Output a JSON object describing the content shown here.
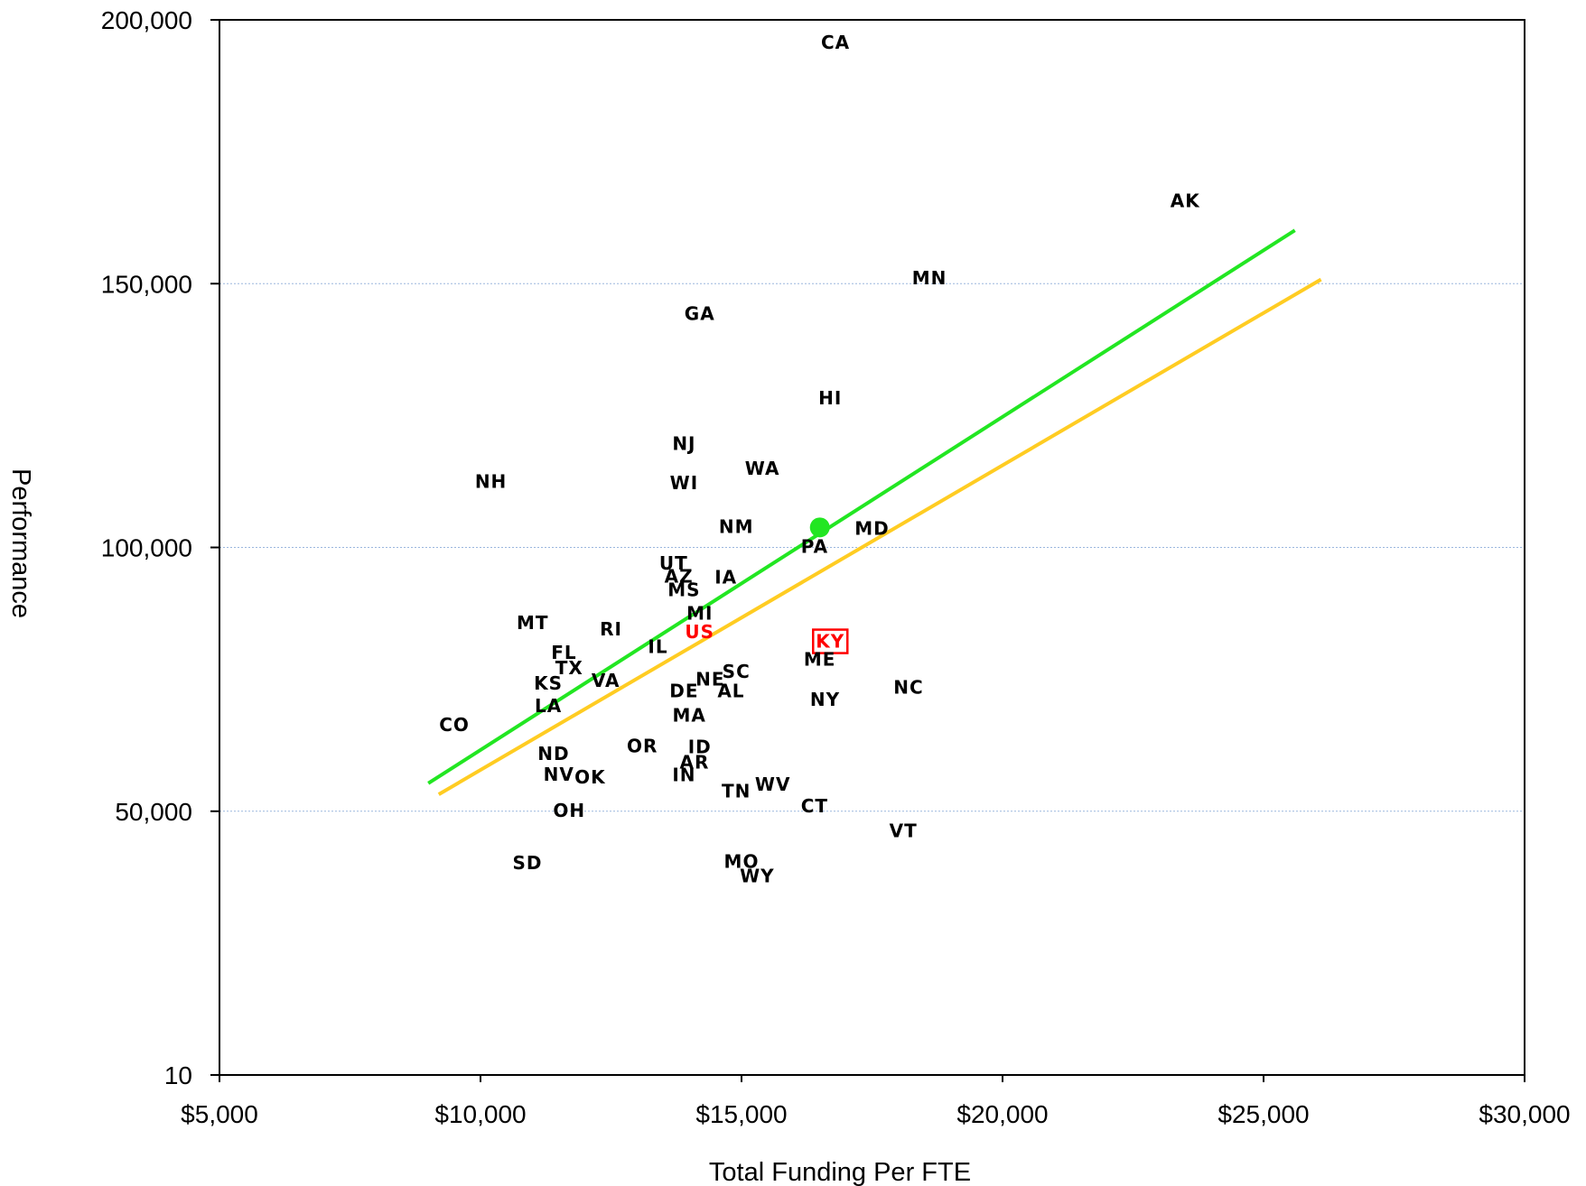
{
  "chart_data": {
    "type": "scatter",
    "title": "",
    "xlabel": "Total Funding Per FTE",
    "ylabel": "Performance",
    "xlim": [
      5000,
      30000
    ],
    "ylim": [
      10,
      200000
    ],
    "xticks": [
      5000,
      10000,
      15000,
      20000,
      25000,
      30000
    ],
    "xtick_labels": [
      "$5,000",
      "$10,000",
      "$15,000",
      "$20,000",
      "$25,000",
      "$30,000"
    ],
    "yticks": [
      10,
      50000,
      100000,
      150000,
      200000
    ],
    "ytick_labels": [
      "10",
      "50,000",
      "100,000",
      "150,000",
      "200,000"
    ],
    "grid": "horizontal",
    "colors": {
      "green_line": "#22e622",
      "gold_line": "#ffcc22",
      "highlight": "#ff0000",
      "gridline": "#9bb7de",
      "text": "#000000"
    },
    "points": [
      {
        "label": "CA",
        "x": 16800,
        "y": 195700
      },
      {
        "label": "AK",
        "x": 23500,
        "y": 165700
      },
      {
        "label": "MN",
        "x": 18600,
        "y": 151100
      },
      {
        "label": "GA",
        "x": 14200,
        "y": 144300
      },
      {
        "label": "HI",
        "x": 16700,
        "y": 128300
      },
      {
        "label": "NJ",
        "x": 13900,
        "y": 119700
      },
      {
        "label": "WA",
        "x": 15400,
        "y": 115000
      },
      {
        "label": "NH",
        "x": 10200,
        "y": 112500
      },
      {
        "label": "WI",
        "x": 13900,
        "y": 112200
      },
      {
        "label": "NM",
        "x": 14900,
        "y": 103900
      },
      {
        "label": "MD",
        "x": 17500,
        "y": 103600
      },
      {
        "label": "PA",
        "x": 16400,
        "y": 100200
      },
      {
        "label": "UT",
        "x": 13700,
        "y": 97000
      },
      {
        "label": "AZ",
        "x": 13800,
        "y": 94500
      },
      {
        "label": "IA",
        "x": 14700,
        "y": 94400
      },
      {
        "label": "MS",
        "x": 13900,
        "y": 92000
      },
      {
        "label": "MI",
        "x": 14200,
        "y": 87500
      },
      {
        "label": "MT",
        "x": 11000,
        "y": 85700
      },
      {
        "label": "RI",
        "x": 12500,
        "y": 84500
      },
      {
        "label": "US",
        "x": 14200,
        "y": 84000,
        "highlight": true
      },
      {
        "label": "KY",
        "x": 16700,
        "y": 82200,
        "highlight": true,
        "boxed": true
      },
      {
        "label": "IL",
        "x": 13400,
        "y": 81200
      },
      {
        "label": "FL",
        "x": 11600,
        "y": 80100
      },
      {
        "label": "ME",
        "x": 16500,
        "y": 78800
      },
      {
        "label": "TX",
        "x": 11700,
        "y": 77200
      },
      {
        "label": "SC",
        "x": 14900,
        "y": 76500
      },
      {
        "label": "NE",
        "x": 14400,
        "y": 75000
      },
      {
        "label": "KS",
        "x": 11300,
        "y": 74300
      },
      {
        "label": "VA",
        "x": 12400,
        "y": 74800
      },
      {
        "label": "NC",
        "x": 18200,
        "y": 73500
      },
      {
        "label": "DE",
        "x": 13900,
        "y": 72800
      },
      {
        "label": "AL",
        "x": 14800,
        "y": 72800
      },
      {
        "label": "NY",
        "x": 16600,
        "y": 71200
      },
      {
        "label": "LA",
        "x": 11300,
        "y": 70000
      },
      {
        "label": "MA",
        "x": 14000,
        "y": 68200
      },
      {
        "label": "CO",
        "x": 9500,
        "y": 66400
      },
      {
        "label": "OR",
        "x": 13100,
        "y": 62400
      },
      {
        "label": "ID",
        "x": 14200,
        "y": 62200
      },
      {
        "label": "ND",
        "x": 11400,
        "y": 60900
      },
      {
        "label": "AR",
        "x": 14100,
        "y": 59300
      },
      {
        "label": "IN",
        "x": 13900,
        "y": 56900
      },
      {
        "label": "NV",
        "x": 11500,
        "y": 57000
      },
      {
        "label": "OK",
        "x": 12100,
        "y": 56500
      },
      {
        "label": "WV",
        "x": 15600,
        "y": 55100
      },
      {
        "label": "TN",
        "x": 14900,
        "y": 53800
      },
      {
        "label": "CT",
        "x": 16400,
        "y": 51000
      },
      {
        "label": "OH",
        "x": 11700,
        "y": 50100
      },
      {
        "label": "VT",
        "x": 18100,
        "y": 46300
      },
      {
        "label": "SD",
        "x": 10900,
        "y": 40200
      },
      {
        "label": "MO",
        "x": 15000,
        "y": 40500
      },
      {
        "label": "WY",
        "x": 15300,
        "y": 37700
      }
    ],
    "lines": [
      {
        "color": "green",
        "points": [
          [
            9000,
            55300
          ],
          [
            25600,
            160100
          ]
        ]
      },
      {
        "color": "gold",
        "points": [
          [
            9200,
            53200
          ],
          [
            26100,
            150800
          ]
        ]
      }
    ],
    "marker": {
      "x": 16500,
      "y": 103800,
      "color": "green"
    }
  }
}
